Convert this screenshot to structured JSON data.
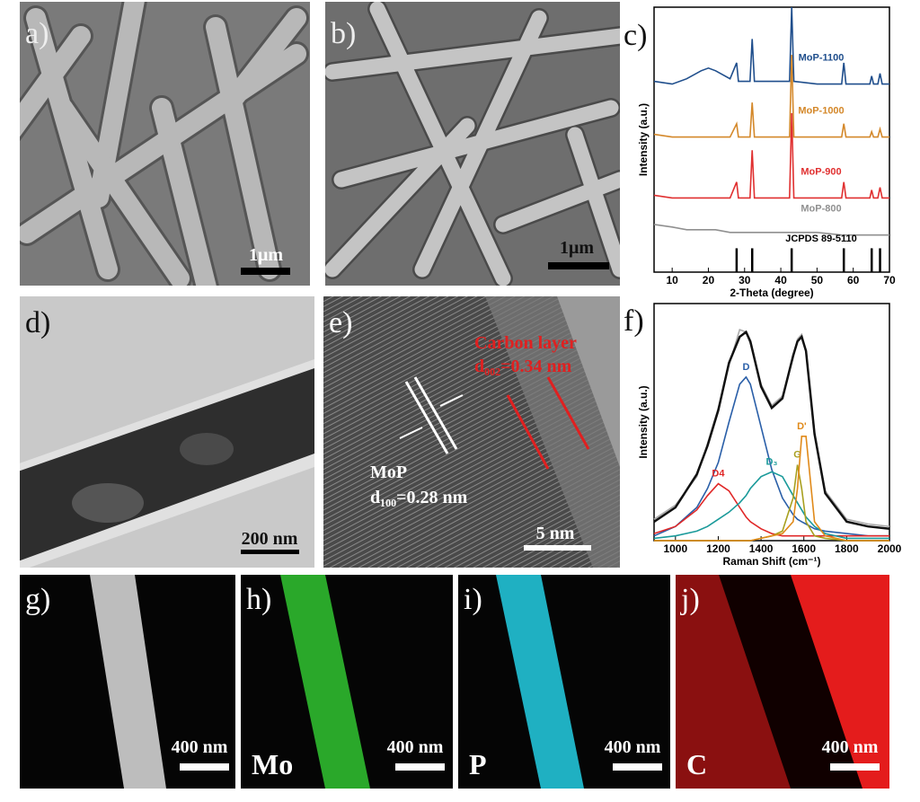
{
  "figure": {
    "panels": [
      {
        "label": "a)",
        "scale_bar": "1μm"
      },
      {
        "label": "b)",
        "scale_bar": "1μm"
      },
      {
        "label": "c)"
      },
      {
        "label": "d)",
        "scale_bar": "200 nm"
      },
      {
        "label": "e)",
        "scale_bar": "5 nm",
        "annotations": [
          "Carbon layer",
          "d₀₀₂=0.34 nm",
          "MoP",
          "d₁₀₀=0.28 nm"
        ]
      },
      {
        "label": "f)"
      },
      {
        "label": "g)",
        "scale_bar": "400 nm"
      },
      {
        "label": "h)",
        "scale_bar": "400 nm",
        "element": "Mo"
      },
      {
        "label": "i)",
        "scale_bar": "400 nm",
        "element": "P"
      },
      {
        "label": "j)",
        "scale_bar": "400 nm",
        "element": "C"
      }
    ]
  },
  "chart_data": [
    {
      "type": "line",
      "ylabel": "Intensity (a.u.)",
      "xlabel": "2-Theta (degree)",
      "xlim": [
        5,
        70
      ],
      "xticks": [
        10,
        20,
        30,
        40,
        50,
        60,
        70
      ],
      "ylim": [
        0,
        100
      ],
      "x": [
        5,
        10,
        14,
        18,
        20,
        22,
        26,
        27.8,
        28.3,
        31.5,
        32.1,
        32.7,
        36,
        42.4,
        43.0,
        43.6,
        50,
        56.8,
        57.4,
        58,
        62,
        64.6,
        65.1,
        65.6,
        66.8,
        67.4,
        68,
        70
      ],
      "series": [
        {
          "name": "MoP-1100",
          "color": "#1f4e8c",
          "values": [
            72,
            71,
            73,
            76,
            77,
            76,
            73,
            79,
            72,
            72,
            88,
            72,
            72,
            72,
            100,
            72,
            71,
            71,
            79,
            71,
            71,
            71,
            74,
            71,
            71,
            75,
            71,
            71
          ]
        },
        {
          "name": "MoP-1000",
          "color": "#d4882a",
          "values": [
            52,
            51,
            51,
            51,
            51,
            51,
            51,
            56,
            51,
            51,
            64,
            51,
            51,
            51,
            82,
            51,
            51,
            51,
            56,
            51,
            51,
            51,
            53,
            51,
            51,
            54,
            51,
            51
          ]
        },
        {
          "name": "MoP-900",
          "color": "#e03030",
          "values": [
            29,
            28,
            28,
            28,
            28,
            28,
            28,
            34,
            28,
            28,
            46,
            28,
            28,
            28,
            60,
            28,
            28,
            28,
            34,
            28,
            28,
            28,
            31,
            28,
            28,
            32,
            28,
            28
          ]
        },
        {
          "name": "MoP-800",
          "color": "#909090",
          "values": [
            18,
            17,
            16,
            16,
            16,
            16,
            15,
            15,
            15,
            15,
            15,
            15,
            15,
            15,
            15,
            15,
            15,
            14,
            14,
            14,
            14,
            14,
            14,
            14,
            14,
            14,
            14,
            14
          ]
        },
        {
          "name": "JCPDS 89-5110",
          "color": "#000000",
          "style": "stick",
          "values": [
            null,
            null,
            null,
            null,
            null,
            null,
            null,
            9,
            null,
            null,
            9,
            null,
            null,
            null,
            9,
            null,
            null,
            null,
            9,
            null,
            null,
            null,
            9,
            null,
            null,
            9,
            null,
            null
          ]
        }
      ]
    },
    {
      "type": "line",
      "ylabel": "Intensity (a.u.)",
      "xlabel": "Raman Shift (cm⁻¹)",
      "xlim": [
        900,
        2000
      ],
      "xticks": [
        1000,
        1200,
        1400,
        1600,
        1800,
        2000
      ],
      "ylim": [
        0,
        100
      ],
      "x": [
        900,
        1000,
        1100,
        1150,
        1200,
        1250,
        1300,
        1330,
        1350,
        1400,
        1450,
        1500,
        1550,
        1570,
        1590,
        1610,
        1650,
        1700,
        1800,
        1900,
        2000
      ],
      "series": [
        {
          "color": "#aaaaaa",
          "values": [
            9,
            15,
            27,
            41,
            56,
            74,
            89,
            88,
            83,
            66,
            57,
            61,
            77,
            85,
            87,
            80,
            46,
            21,
            9,
            7,
            6
          ]
        },
        {
          "color": "#111111",
          "values": [
            8,
            14,
            28,
            40,
            55,
            75,
            86,
            88,
            84,
            65,
            56,
            60,
            78,
            84,
            86,
            80,
            45,
            20,
            8,
            6,
            5
          ]
        },
        {
          "name": "D",
          "color": "#2a5fa8",
          "values": [
            2,
            6,
            14,
            22,
            33,
            50,
            66,
            69,
            66,
            48,
            30,
            18,
            11,
            9,
            8,
            7,
            5,
            4,
            3,
            2,
            2
          ]
        },
        {
          "name": "D4",
          "color": "#e02828",
          "values": [
            3,
            6,
            13,
            19,
            24,
            21,
            14,
            10,
            8,
            5,
            3,
            2,
            2,
            2,
            2,
            2,
            2,
            2,
            2,
            2,
            2
          ]
        },
        {
          "name": "D₃",
          "color": "#1a9a9a",
          "values": [
            1,
            2,
            4,
            6,
            9,
            12,
            16,
            19,
            22,
            27,
            29,
            27,
            19,
            16,
            13,
            10,
            6,
            3,
            1,
            1,
            1
          ]
        },
        {
          "name": "G",
          "color": "#a8a020",
          "values": [
            0,
            0,
            0,
            0,
            0,
            0,
            0,
            0,
            0,
            1,
            2,
            4,
            18,
            32,
            22,
            8,
            2,
            1,
            0,
            0,
            0
          ]
        },
        {
          "name": "D'",
          "color": "#e08a1a",
          "values": [
            0,
            0,
            0,
            0,
            0,
            0,
            0,
            0,
            0,
            1,
            2,
            3,
            8,
            22,
            44,
            44,
            8,
            2,
            0,
            0,
            0
          ]
        }
      ]
    }
  ]
}
